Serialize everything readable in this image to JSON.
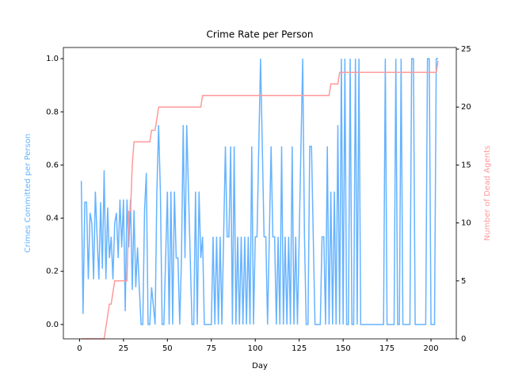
{
  "chart_data": {
    "type": "line",
    "title": "Crime Rate per Person",
    "xlabel": "Day",
    "ylabel": "Crimes Committed per Person",
    "ylabel_color": "#66b3ff",
    "y2label": "Number of Dead Agents",
    "y2label_color": "#ff9999",
    "x": [
      1,
      2,
      3,
      4,
      5,
      6,
      7,
      8,
      9,
      10,
      11,
      12,
      13,
      14,
      15,
      16,
      17,
      18,
      19,
      20,
      21,
      22,
      23,
      24,
      25,
      26,
      27,
      28,
      29,
      30,
      31,
      32,
      33,
      34,
      35,
      36,
      37,
      38,
      39,
      40,
      41,
      42,
      43,
      44,
      45,
      46,
      47,
      48,
      49,
      50,
      51,
      52,
      53,
      54,
      55,
      56,
      57,
      58,
      59,
      60,
      61,
      62,
      63,
      64,
      65,
      66,
      67,
      68,
      69,
      70,
      71,
      72,
      73,
      74,
      75,
      76,
      77,
      78,
      79,
      80,
      81,
      82,
      83,
      84,
      85,
      86,
      87,
      88,
      89,
      90,
      91,
      92,
      93,
      94,
      95,
      96,
      97,
      98,
      99,
      100,
      101,
      102,
      103,
      104,
      105,
      106,
      107,
      108,
      109,
      110,
      111,
      112,
      113,
      114,
      115,
      116,
      117,
      118,
      119,
      120,
      121,
      122,
      123,
      124,
      125,
      126,
      127,
      128,
      129,
      130,
      131,
      132,
      133,
      134,
      135,
      136,
      137,
      138,
      139,
      140,
      141,
      142,
      143,
      144,
      145,
      146,
      147,
      148,
      149,
      150,
      151,
      152,
      153,
      154,
      155,
      156,
      157,
      158,
      159,
      160,
      161,
      162,
      163,
      164,
      165,
      166,
      167,
      168,
      169,
      170,
      171,
      172,
      173,
      174,
      175,
      176,
      177,
      178,
      179,
      180,
      181,
      182,
      183,
      184,
      185,
      186,
      187,
      188,
      189,
      190,
      191,
      192,
      193,
      194,
      195,
      196,
      197,
      198,
      199,
      200,
      201,
      202,
      203,
      204
    ],
    "series": [
      {
        "color": "#66b3ff",
        "axis": "y",
        "values": [
          0.54,
          0.04,
          0.46,
          0.46,
          0.17,
          0.42,
          0.38,
          0.17,
          0.5,
          0.33,
          0.17,
          0.46,
          0.21,
          0.58,
          0.17,
          0.44,
          0.25,
          0.33,
          0.17,
          0.38,
          0.42,
          0.25,
          0.47,
          0.29,
          0.47,
          0.05,
          0.47,
          0.29,
          0.47,
          0.13,
          0.43,
          0.14,
          0.29,
          0.14,
          0,
          0,
          0.43,
          0.57,
          0,
          0,
          0.14,
          0.07,
          0,
          0.5,
          0.75,
          0.5,
          0,
          0,
          0.25,
          0.5,
          0,
          0.5,
          0,
          0.5,
          0.25,
          0.25,
          0,
          0.25,
          0.75,
          0.25,
          0.75,
          0.5,
          0.25,
          0,
          0,
          0.5,
          0,
          0.5,
          0.25,
          0.33,
          0,
          0,
          0,
          0,
          0,
          0.33,
          0,
          0.33,
          0,
          0.33,
          0,
          0.33,
          0.67,
          0.33,
          0.33,
          0.67,
          0,
          0.67,
          0,
          0.33,
          0,
          0.33,
          0,
          0.33,
          0,
          0.33,
          0,
          0.67,
          0,
          0.33,
          0.33,
          0.67,
          1,
          0.67,
          0.33,
          0.33,
          0,
          0.33,
          0.67,
          0.33,
          0.33,
          0,
          0.33,
          0,
          0.67,
          0,
          0.33,
          0,
          0.33,
          0,
          0.67,
          0,
          0.33,
          0,
          0.33,
          0.67,
          1,
          0.33,
          0,
          0,
          0.67,
          0.67,
          0.33,
          0,
          0,
          0,
          0,
          0.33,
          0.33,
          0,
          0.67,
          0,
          0.5,
          0,
          0.5,
          0,
          0.75,
          0,
          1,
          0,
          1,
          0,
          0,
          1,
          0,
          0,
          1,
          0,
          1,
          0,
          0,
          0,
          0,
          0,
          0,
          0,
          0,
          0,
          0,
          0,
          0,
          0,
          0,
          1,
          0,
          0,
          0,
          0,
          0,
          1,
          0,
          0,
          1,
          0,
          0,
          0,
          0,
          0,
          1,
          1,
          0,
          0,
          0,
          0,
          0,
          0,
          0,
          1,
          1,
          0,
          0,
          0,
          1,
          1
        ]
      },
      {
        "color": "#ff9999",
        "axis": "y2",
        "values": [
          0,
          0,
          0,
          0,
          0,
          0,
          0,
          0,
          0,
          0,
          0,
          0,
          0,
          0,
          1,
          2,
          3,
          3,
          4,
          5,
          5,
          5,
          5,
          5,
          5,
          5,
          5,
          11,
          11,
          15,
          17,
          17,
          17,
          17,
          17,
          17,
          17,
          17,
          17,
          17,
          18,
          18,
          18,
          19,
          20,
          20,
          20,
          20,
          20,
          20,
          20,
          20,
          20,
          20,
          20,
          20,
          20,
          20,
          20,
          20,
          20,
          20,
          20,
          20,
          20,
          20,
          20,
          20,
          20,
          21,
          21,
          21,
          21,
          21,
          21,
          21,
          21,
          21,
          21,
          21,
          21,
          21,
          21,
          21,
          21,
          21,
          21,
          21,
          21,
          21,
          21,
          21,
          21,
          21,
          21,
          21,
          21,
          21,
          21,
          21,
          21,
          21,
          21,
          21,
          21,
          21,
          21,
          21,
          21,
          21,
          21,
          21,
          21,
          21,
          21,
          21,
          21,
          21,
          21,
          21,
          21,
          21,
          21,
          21,
          21,
          21,
          21,
          21,
          21,
          21,
          21,
          21,
          21,
          21,
          21,
          21,
          21,
          21,
          21,
          21,
          21,
          21,
          22,
          22,
          22,
          22,
          22,
          23,
          23,
          23,
          23,
          23,
          23,
          23,
          23,
          23,
          23,
          23,
          23,
          23,
          23,
          23,
          23,
          23,
          23,
          23,
          23,
          23,
          23,
          23,
          23,
          23,
          23,
          23,
          23,
          23,
          23,
          23,
          23,
          23,
          23,
          23,
          23,
          23,
          23,
          23,
          23,
          23,
          23,
          23,
          23,
          23,
          23,
          23,
          23,
          23,
          23,
          23,
          23,
          23,
          23,
          23,
          23,
          24
        ]
      }
    ],
    "xlim": [
      -9.2,
      214.4
    ],
    "xticks": [
      0,
      25,
      50,
      75,
      100,
      125,
      150,
      175,
      200
    ],
    "ylim": [
      -0.054,
      1.042
    ],
    "yticks": [
      {
        "value": 0,
        "label": "0.0"
      },
      {
        "value": 0.2,
        "label": "0.2"
      },
      {
        "value": 0.4,
        "label": "0.4"
      },
      {
        "value": 0.6,
        "label": "0.6"
      },
      {
        "value": 0.8,
        "label": "0.8"
      },
      {
        "value": 1,
        "label": "1.0"
      }
    ],
    "y2lim": [
      0,
      25.14
    ],
    "y2ticks": [
      0,
      5,
      10,
      15,
      20,
      25
    ]
  }
}
